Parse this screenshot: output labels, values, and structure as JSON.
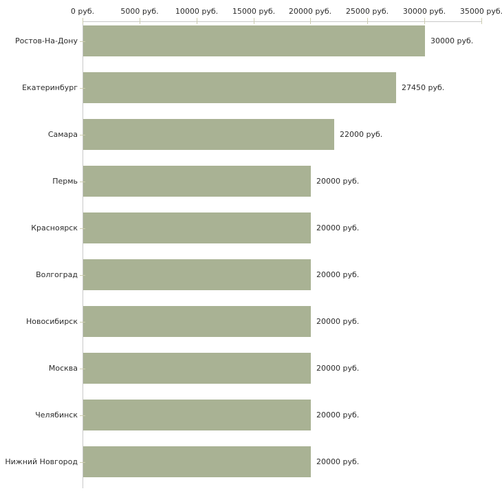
{
  "chart_data": {
    "type": "bar",
    "orientation": "horizontal",
    "title": "",
    "categories": [
      "Ростов-На-Дону",
      "Екатеринбург",
      "Самара",
      "Пермь",
      "Красноярск",
      "Волгоград",
      "Новосибирск",
      "Москва",
      "Челябинск",
      "Нижний Новгород"
    ],
    "values": [
      30000,
      27450,
      22000,
      20000,
      20000,
      20000,
      20000,
      20000,
      20000,
      20000
    ],
    "value_labels": [
      "30000 руб.",
      "27450 руб.",
      "22000 руб.",
      "20000 руб.",
      "20000 руб.",
      "20000 руб.",
      "20000 руб.",
      "20000 руб.",
      "20000 руб.",
      "20000 руб."
    ],
    "unit": "руб.",
    "x_axis": {
      "position": "top",
      "range": [
        0,
        35000
      ],
      "ticks": [
        0,
        5000,
        10000,
        15000,
        20000,
        25000,
        30000,
        35000
      ],
      "tick_labels": [
        "0 руб.",
        "5000 руб.",
        "10000 руб.",
        "15000 руб.",
        "20000 руб.",
        "25000 руб.",
        "30000 руб.",
        "35000 руб."
      ]
    },
    "grid": false,
    "legend": false,
    "colors": {
      "bar": "#a9b294",
      "axis_line": "#c9c9c9",
      "tick_mark": "#cdcdb0",
      "text": "#2b2b2b",
      "background": "#ffffff"
    }
  }
}
